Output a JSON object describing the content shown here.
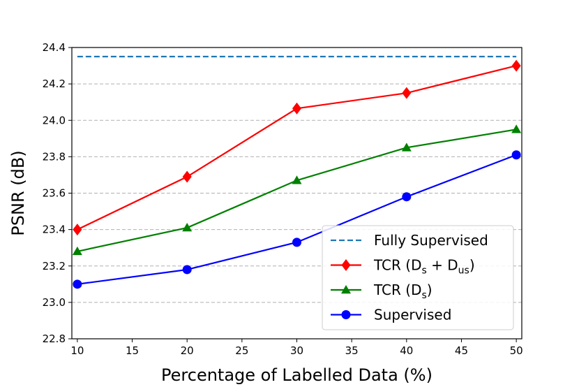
{
  "chart_data": {
    "type": "line",
    "title": "",
    "xlabel": "Percentage of Labelled Data (%)",
    "ylabel": "PSNR (dB)",
    "xlim": [
      9.5,
      50.5
    ],
    "ylim": [
      22.8,
      24.4
    ],
    "xticks": [
      10,
      15,
      20,
      25,
      30,
      35,
      40,
      45,
      50
    ],
    "xtick_labels": [
      "10",
      "15",
      "20",
      "25",
      "30",
      "35",
      "40",
      "45",
      "50"
    ],
    "yticks": [
      22.8,
      23.0,
      23.2,
      23.4,
      23.6,
      23.8,
      24.0,
      24.2,
      24.4
    ],
    "ytick_labels": [
      "22.8",
      "23.0",
      "23.2",
      "23.4",
      "23.6",
      "23.8",
      "24.0",
      "24.2",
      "24.4"
    ],
    "grid": "horizontal dashed",
    "legend_position": "bottom-right",
    "x": [
      10,
      20,
      30,
      40,
      50
    ],
    "baseline": {
      "name": "Fully Supervised",
      "value": 24.35,
      "color": "#1f77b4",
      "style": "dashed"
    },
    "series": [
      {
        "name": "TCR (Ds + Dus)",
        "legend": {
          "base": "TCR (D",
          "sub1": "s",
          "mid": " + D",
          "sub2": "us",
          "end": ")"
        },
        "values": [
          23.4,
          23.69,
          24.065,
          24.15,
          24.3
        ],
        "color": "#ff0000",
        "marker": "diamond"
      },
      {
        "name": "TCR (Ds)",
        "legend": {
          "base": "TCR (D",
          "sub1": "s",
          "mid": ")",
          "sub2": "",
          "end": ""
        },
        "values": [
          23.28,
          23.41,
          23.67,
          23.85,
          23.95
        ],
        "color": "#008000",
        "marker": "triangle"
      },
      {
        "name": "Supervised",
        "legend": {
          "base": "Supervised",
          "sub1": "",
          "mid": "",
          "sub2": "",
          "end": ""
        },
        "values": [
          23.1,
          23.18,
          23.33,
          23.58,
          23.81
        ],
        "color": "#0000ff",
        "marker": "circle"
      }
    ]
  }
}
